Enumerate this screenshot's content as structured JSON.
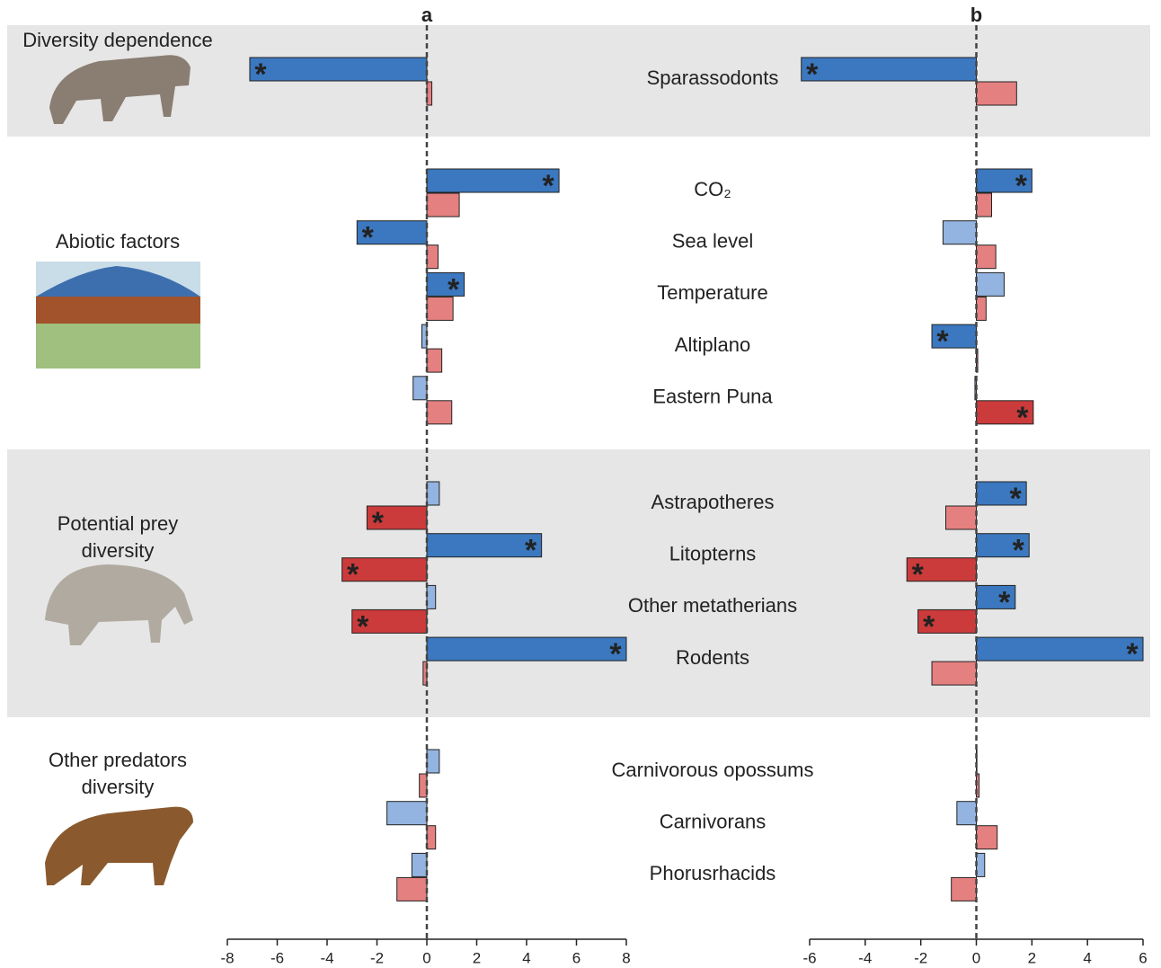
{
  "groups": [
    {
      "label": [
        "Diversity dependence"
      ],
      "categories": [
        "Sparassodonts"
      ]
    },
    {
      "label": [
        "Abiotic factors"
      ],
      "categories": [
        "CO₂",
        "Sea level",
        "Temperature",
        "Altiplano",
        "Eastern Puna"
      ]
    },
    {
      "label": [
        "Potential prey",
        "diversity"
      ],
      "categories": [
        "Astrapotheres",
        "Litopterns",
        "Other metatherians",
        "Rodents"
      ]
    },
    {
      "label": [
        "Other predators",
        "diversity"
      ],
      "categories": [
        "Carnivorous opossums",
        "Carnivorans",
        "Phorusrhacids"
      ]
    }
  ],
  "chart_data": [
    {
      "type": "hbar",
      "title": "a",
      "xlim": [
        -8,
        8
      ],
      "xticks": [
        -8,
        -6,
        -4,
        -2,
        0,
        2,
        4,
        6,
        8
      ],
      "significance_marker": "*",
      "series": [
        {
          "color": "#93b4e0",
          "significant_color": "#3b78bf",
          "values": [
            -7.1,
            5.3,
            -2.8,
            1.5,
            -0.2,
            -0.55,
            0.5,
            4.6,
            0.35,
            8.0,
            0.5,
            -1.6,
            -0.6
          ],
          "significant": [
            true,
            true,
            true,
            true,
            false,
            false,
            false,
            true,
            false,
            true,
            false,
            false,
            false
          ]
        },
        {
          "color": "#e58080",
          "significant_color": "#cc3b3b",
          "values": [
            0.2,
            1.3,
            0.45,
            1.05,
            0.6,
            1.0,
            -2.4,
            -3.4,
            -3.0,
            -0.15,
            -0.3,
            0.35,
            -1.2
          ],
          "significant": [
            false,
            false,
            false,
            false,
            false,
            false,
            true,
            true,
            true,
            false,
            false,
            false,
            false
          ]
        }
      ]
    },
    {
      "type": "hbar",
      "title": "b",
      "xlim": [
        -6,
        6
      ],
      "xticks": [
        -6,
        -4,
        -2,
        0,
        2,
        4,
        6
      ],
      "significance_marker": "*",
      "series": [
        {
          "color": "#93b4e0",
          "significant_color": "#3b78bf",
          "values": [
            -6.3,
            2.0,
            -1.2,
            1.0,
            -1.6,
            -0.05,
            1.8,
            1.9,
            1.4,
            6.0,
            0.02,
            -0.7,
            0.3
          ],
          "significant": [
            true,
            true,
            false,
            false,
            true,
            false,
            true,
            true,
            true,
            true,
            false,
            false,
            false
          ]
        },
        {
          "color": "#e58080",
          "significant_color": "#cc3b3b",
          "values": [
            1.45,
            0.55,
            0.7,
            0.35,
            0.05,
            2.05,
            -1.1,
            -2.5,
            -2.1,
            -1.6,
            0.1,
            0.75,
            -0.9
          ],
          "significant": [
            false,
            false,
            false,
            false,
            false,
            true,
            false,
            true,
            true,
            false,
            false,
            false,
            false
          ]
        }
      ]
    }
  ]
}
